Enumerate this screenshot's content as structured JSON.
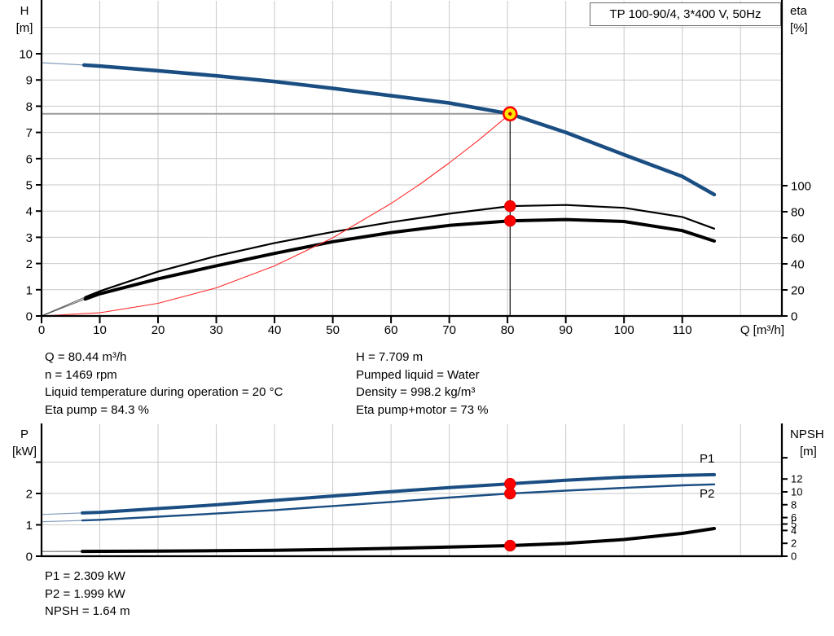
{
  "header": {
    "model_label": "TP 100-90/4, 3*400 V, 50Hz"
  },
  "info_top_left": {
    "lines": [
      "Q = 80.44 m³/h",
      "n = 1469 rpm",
      "Liquid temperature during operation = 20 °C",
      "Eta pump = 84.3 %"
    ]
  },
  "info_top_right": {
    "lines": [
      "H = 7.709 m",
      "Pumped liquid = Water",
      "Density = 998.2 kg/m³",
      "Eta pump+motor = 73 %"
    ]
  },
  "info_bottom": {
    "lines": [
      "P1 = 2.309 kW",
      "P2 = 1.999 kW",
      "NPSH = 1.64 m"
    ]
  },
  "colors": {
    "curve_blue": "#1a4e82",
    "curve_black": "#000000",
    "system_red": "#ff2a2a",
    "marker_red": "#ff0000",
    "marker_red_edge": "#d40000",
    "duty_yellow": "#ffe500",
    "grid": "#c9c9c9",
    "duty_line_gray": "#9a9a9a",
    "axis": "#000000",
    "label_blue": "#1a4e82"
  },
  "chart_data": [
    {
      "id": "head-chart",
      "type": "line",
      "x_axis": {
        "label": "Q [m³/h]",
        "lim": [
          0,
          127.1
        ],
        "ticks": [
          {
            "v": 0,
            "t": "0"
          },
          {
            "v": 10,
            "t": "10"
          },
          {
            "v": 20,
            "t": "20"
          },
          {
            "v": 30,
            "t": "30"
          },
          {
            "v": 40,
            "t": "40"
          },
          {
            "v": 50,
            "t": "50"
          },
          {
            "v": 60,
            "t": "60"
          },
          {
            "v": 70,
            "t": "70"
          },
          {
            "v": 80,
            "t": "80"
          },
          {
            "v": 90,
            "t": "90"
          },
          {
            "v": 100,
            "t": "100"
          },
          {
            "v": 110,
            "t": "110"
          }
        ],
        "grid": [
          10,
          20,
          30,
          40,
          50,
          60,
          70,
          80,
          90,
          100,
          110,
          120
        ]
      },
      "left_axis": {
        "label": [
          "H",
          "[m]"
        ],
        "lim": [
          0,
          12.05
        ],
        "ticks": [
          {
            "v": 0,
            "t": "0"
          },
          {
            "v": 1,
            "t": "1"
          },
          {
            "v": 2,
            "t": "2"
          },
          {
            "v": 3,
            "t": "3"
          },
          {
            "v": 4,
            "t": "4"
          },
          {
            "v": 5,
            "t": "5"
          },
          {
            "v": 6,
            "t": "6"
          },
          {
            "v": 7,
            "t": "7"
          },
          {
            "v": 8,
            "t": "8"
          },
          {
            "v": 9,
            "t": "9"
          },
          {
            "v": 10,
            "t": "10"
          }
        ],
        "grid": [
          1,
          2,
          3,
          4,
          5,
          6,
          7,
          8,
          9,
          10,
          11
        ]
      },
      "right_axis": {
        "label": [
          "eta",
          "[%]"
        ],
        "lim": [
          0,
          242.5
        ],
        "ticks": [
          {
            "v": 0,
            "t": "0"
          },
          {
            "v": 20,
            "t": "20"
          },
          {
            "v": 40,
            "t": "40"
          },
          {
            "v": 60,
            "t": "60"
          },
          {
            "v": 80,
            "t": "80"
          },
          {
            "v": 100,
            "t": "100"
          }
        ],
        "grid": []
      },
      "series": [
        {
          "name": "head-curve",
          "axis": "left",
          "color": "#1a4e82",
          "width": 4.5,
          "thin_until": 7.3,
          "x": [
            0,
            7.3,
            10,
            20,
            30,
            40,
            50,
            60,
            70,
            80.44,
            90,
            100,
            110,
            115.5
          ],
          "y": [
            9.66,
            9.57,
            9.53,
            9.35,
            9.16,
            8.94,
            8.68,
            8.4,
            8.12,
            7.709,
            7.0,
            6.15,
            5.32,
            4.63
          ]
        },
        {
          "name": "eta-pump-curve",
          "axis": "right",
          "color": "#000000",
          "width": 2.2,
          "thin_until": 7.5,
          "x": [
            0,
            7.5,
            10,
            20,
            30,
            40,
            50,
            60,
            70,
            80.44,
            90,
            100,
            110,
            115.5
          ],
          "y": [
            0,
            14.5,
            19,
            34,
            46,
            56,
            64.5,
            72,
            78.5,
            84.3,
            85.2,
            83,
            76,
            67
          ]
        },
        {
          "name": "eta-pump-motor-curve",
          "axis": "right",
          "color": "#000000",
          "width": 4,
          "thin_until": 7.5,
          "x": [
            0,
            7.5,
            10,
            20,
            30,
            40,
            50,
            60,
            70,
            80.44,
            90,
            100,
            110,
            115.5
          ],
          "y": [
            0,
            13,
            17,
            28.5,
            38.5,
            48,
            57,
            64,
            69.5,
            73,
            74,
            72.5,
            65.5,
            57.5
          ]
        },
        {
          "name": "system-curve",
          "axis": "left",
          "color": "#ff2a2a",
          "width": 1.1,
          "x": [
            0,
            10,
            20,
            30,
            40,
            50,
            60,
            65,
            70,
            75,
            80.44
          ],
          "y": [
            0,
            0.12,
            0.48,
            1.07,
            1.91,
            2.98,
            4.29,
            5.03,
            5.84,
            6.7,
            7.709
          ]
        }
      ],
      "annotations": {
        "duty_q": 80.44,
        "duty_h": 7.709,
        "dots": [
          {
            "q": 80.44,
            "v": 84.3,
            "axis": "right"
          },
          {
            "q": 80.44,
            "v": 73,
            "axis": "right"
          }
        ]
      }
    },
    {
      "id": "power-chart",
      "type": "line",
      "x_axis": {
        "label": "",
        "lim": [
          0,
          127.1
        ],
        "ticks": [],
        "grid": [
          10,
          20,
          30,
          40,
          50,
          60,
          70,
          80,
          90,
          100,
          110,
          120
        ]
      },
      "left_axis": {
        "label": [
          "P",
          "[kW]"
        ],
        "lim": [
          0,
          4.234
        ],
        "ticks": [
          {
            "v": 0,
            "t": "0"
          },
          {
            "v": 1,
            "t": "1"
          },
          {
            "v": 2,
            "t": "2"
          },
          {
            "v": 3,
            "t": ""
          }
        ],
        "grid": [
          1,
          2,
          3
        ]
      },
      "right_axis": {
        "label": [
          "NPSH",
          "[m]"
        ],
        "lim": [
          0,
          20.63
        ],
        "ticks": [
          {
            "v": 0,
            "t": "0"
          },
          {
            "v": 2,
            "t": "2"
          },
          {
            "v": 4,
            "t": "4"
          },
          {
            "v": 5,
            "t": "5"
          },
          {
            "v": 6,
            "t": "6"
          },
          {
            "v": 8,
            "t": "8"
          },
          {
            "v": 10,
            "t": "10"
          },
          {
            "v": 12,
            "t": "12"
          },
          {
            "v": 15.3,
            "t": ""
          }
        ],
        "grid": []
      },
      "series": [
        {
          "name": "p1-curve",
          "axis": "left",
          "color": "#1a4e82",
          "width": 4,
          "thin_until": 7,
          "end_label": "P1",
          "x": [
            0,
            7,
            10,
            20,
            30,
            40,
            50,
            60,
            70,
            80.44,
            90,
            100,
            110,
            115.5
          ],
          "y": [
            1.33,
            1.38,
            1.4,
            1.52,
            1.64,
            1.78,
            1.92,
            2.06,
            2.19,
            2.309,
            2.42,
            2.52,
            2.58,
            2.6
          ]
        },
        {
          "name": "p2-curve",
          "axis": "left",
          "color": "#1a4e82",
          "width": 2.4,
          "thin_until": 7,
          "end_label": "P2",
          "x": [
            0,
            7,
            10,
            20,
            30,
            40,
            50,
            60,
            70,
            80.44,
            90,
            100,
            110,
            115.5
          ],
          "y": [
            1.1,
            1.14,
            1.16,
            1.26,
            1.36,
            1.47,
            1.6,
            1.73,
            1.87,
            1.999,
            2.09,
            2.18,
            2.26,
            2.29
          ]
        },
        {
          "name": "npsh-curve",
          "axis": "right",
          "color": "#000000",
          "width": 4,
          "thin_until": 7,
          "x": [
            0,
            7,
            10,
            20,
            30,
            40,
            50,
            60,
            70,
            80.44,
            90,
            100,
            110,
            115.5
          ],
          "y": [
            0.74,
            0.75,
            0.76,
            0.8,
            0.85,
            0.92,
            1.05,
            1.22,
            1.42,
            1.64,
            2.0,
            2.6,
            3.55,
            4.3
          ]
        }
      ],
      "annotations": {
        "dots": [
          {
            "q": 80.44,
            "v": 2.309,
            "axis": "left"
          },
          {
            "q": 80.44,
            "v": 1.999,
            "axis": "left"
          },
          {
            "q": 80.44,
            "v": 1.64,
            "axis": "right"
          }
        ]
      }
    }
  ]
}
